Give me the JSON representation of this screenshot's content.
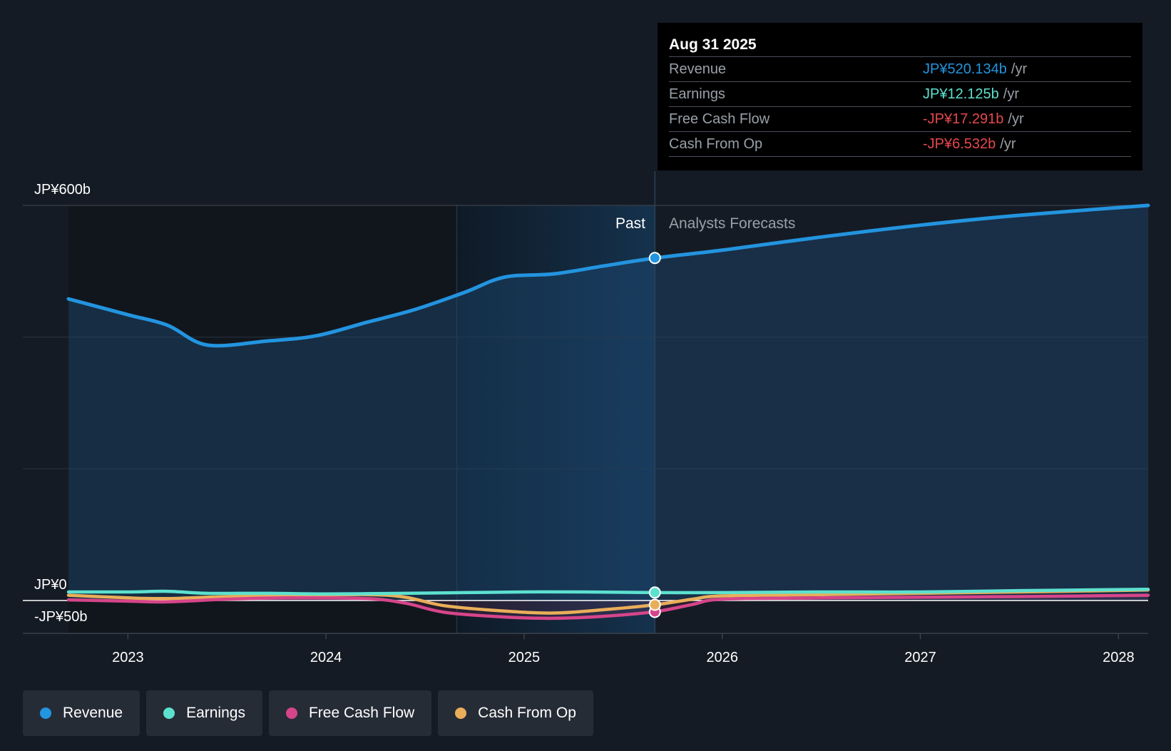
{
  "chart_data": {
    "type": "line",
    "title": "",
    "xlabel": "",
    "ylabel": "",
    "ylim": [
      -50,
      600
    ],
    "xlim": [
      2022.7,
      2028.15
    ],
    "x_ticks": [
      {
        "value": 2023,
        "label": "2023"
      },
      {
        "value": 2024,
        "label": "2024"
      },
      {
        "value": 2025,
        "label": "2025"
      },
      {
        "value": 2026,
        "label": "2026"
      },
      {
        "value": 2027,
        "label": "2027"
      },
      {
        "value": 2028,
        "label": "2028"
      }
    ],
    "y_ticks": [
      {
        "value": 600,
        "label": "JP¥600b"
      },
      {
        "value": 0,
        "label": "JP¥0"
      },
      {
        "value": -50,
        "label": "-JP¥50b"
      }
    ],
    "past_start": 2024.66,
    "divider": 2025.66,
    "past_label": "Past",
    "forecast_label": "Analysts Forecasts",
    "series": [
      {
        "name": "Revenue",
        "color": "#2394df",
        "x": [
          2022.7,
          2023.0,
          2023.2,
          2023.4,
          2023.7,
          2023.95,
          2024.2,
          2024.45,
          2024.7,
          2024.9,
          2025.15,
          2025.4,
          2025.66,
          2026.0,
          2026.5,
          2027.0,
          2027.5,
          2028.15
        ],
        "values": [
          458,
          434,
          418,
          388,
          394,
          402,
          422,
          442,
          468,
          491,
          496,
          508,
          520,
          532,
          552,
          570,
          585,
          600
        ]
      },
      {
        "name": "Earnings",
        "color": "#5de1cf",
        "x": [
          2022.7,
          2023.0,
          2023.2,
          2023.4,
          2023.7,
          2024.0,
          2024.4,
          2024.7,
          2025.0,
          2025.3,
          2025.66,
          2026.0,
          2026.5,
          2027.0,
          2027.5,
          2028.15
        ],
        "values": [
          13,
          13,
          14,
          11,
          11,
          10,
          11,
          12,
          13,
          13,
          12,
          12,
          13,
          13,
          15,
          17
        ]
      },
      {
        "name": "Free Cash Flow",
        "color": "#d6458a",
        "x": [
          2022.7,
          2023.0,
          2023.2,
          2023.5,
          2023.8,
          2024.2,
          2024.4,
          2024.6,
          2024.9,
          2025.15,
          2025.4,
          2025.66,
          2025.85,
          2026.0,
          2026.5,
          2027.0,
          2027.5,
          2028.15
        ],
        "values": [
          1,
          -1,
          -2,
          2,
          4,
          3,
          -4,
          -18,
          -25,
          -27,
          -24,
          -17,
          -6,
          2,
          4,
          5,
          6,
          8
        ]
      },
      {
        "name": "Cash From Op",
        "color": "#e9ae5a",
        "x": [
          2022.7,
          2023.0,
          2023.2,
          2023.5,
          2023.8,
          2024.2,
          2024.4,
          2024.6,
          2024.9,
          2025.15,
          2025.4,
          2025.66,
          2025.85,
          2026.0,
          2026.5,
          2027.0,
          2027.5,
          2028.15
        ],
        "values": [
          8,
          4,
          3,
          6,
          7,
          9,
          5,
          -8,
          -16,
          -19,
          -14,
          -6.5,
          2,
          7,
          9,
          11,
          13,
          16
        ]
      }
    ],
    "highlight_x": 2025.66,
    "highlight_points": [
      {
        "name": "Revenue",
        "value": 520.134
      },
      {
        "name": "Earnings",
        "value": 12.125
      },
      {
        "name": "Free Cash Flow",
        "value": -17.291
      },
      {
        "name": "Cash From Op",
        "value": -6.532
      }
    ]
  },
  "tooltip": {
    "date": "Aug 31 2025",
    "unit": "/yr",
    "rows": [
      {
        "label": "Revenue",
        "value": "JP¥520.134b",
        "color": "#2394df"
      },
      {
        "label": "Earnings",
        "value": "JP¥12.125b",
        "color": "#5de1cf"
      },
      {
        "label": "Free Cash Flow",
        "value": "-JP¥17.291b",
        "color": "#e5484d"
      },
      {
        "label": "Cash From Op",
        "value": "-JP¥6.532b",
        "color": "#e5484d"
      }
    ]
  },
  "legend": [
    {
      "label": "Revenue",
      "color": "#2394df"
    },
    {
      "label": "Earnings",
      "color": "#5de1cf"
    },
    {
      "label": "Free Cash Flow",
      "color": "#d6458a"
    },
    {
      "label": "Cash From Op",
      "color": "#e9ae5a"
    }
  ]
}
